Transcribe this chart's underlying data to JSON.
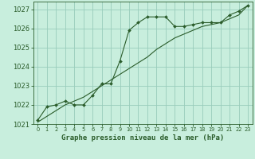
{
  "title": "Graphe pression niveau de la mer (hPa)",
  "bg_color": "#c8eedd",
  "grid_color": "#99ccbb",
  "line_color": "#2a5c2a",
  "xlim": [
    -0.5,
    23.5
  ],
  "ylim": [
    1021,
    1027.4
  ],
  "yticks": [
    1021,
    1022,
    1023,
    1024,
    1025,
    1026,
    1027
  ],
  "xticks": [
    0,
    1,
    2,
    3,
    4,
    5,
    6,
    7,
    8,
    9,
    10,
    11,
    12,
    13,
    14,
    15,
    16,
    17,
    18,
    19,
    20,
    21,
    22,
    23
  ],
  "series1_x": [
    0,
    1,
    2,
    3,
    4,
    5,
    6,
    7,
    8,
    9,
    10,
    11,
    12,
    13,
    14,
    15,
    16,
    17,
    18,
    19,
    20,
    21,
    22,
    23
  ],
  "series1_y": [
    1021.2,
    1021.9,
    1022.0,
    1022.2,
    1022.0,
    1022.0,
    1022.5,
    1023.1,
    1023.1,
    1024.3,
    1025.9,
    1026.3,
    1026.6,
    1026.6,
    1026.6,
    1026.1,
    1026.1,
    1026.2,
    1026.3,
    1026.3,
    1026.3,
    1026.7,
    1026.9,
    1027.2
  ],
  "series2_x": [
    0,
    1,
    2,
    3,
    4,
    5,
    6,
    7,
    8,
    9,
    10,
    11,
    12,
    13,
    14,
    15,
    16,
    17,
    18,
    19,
    20,
    21,
    22,
    23
  ],
  "series2_y": [
    1021.1,
    1021.4,
    1021.7,
    1022.0,
    1022.2,
    1022.4,
    1022.7,
    1023.0,
    1023.3,
    1023.6,
    1023.9,
    1024.2,
    1024.5,
    1024.9,
    1025.2,
    1025.5,
    1025.7,
    1025.9,
    1026.1,
    1026.2,
    1026.3,
    1026.5,
    1026.7,
    1027.2
  ],
  "ytick_fontsize": 6,
  "xtick_fontsize": 4.8,
  "xlabel_fontsize": 6.5,
  "line_width": 0.8,
  "marker_size": 2.0
}
